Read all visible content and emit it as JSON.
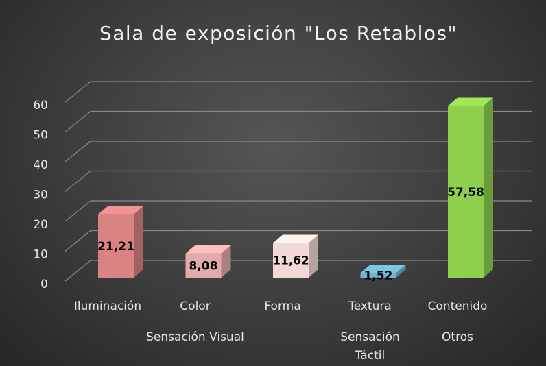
{
  "chart_data": {
    "type": "bar3d",
    "title": "Sala de exposición \"Los Retablos\"",
    "categories": [
      "Iluminación",
      "Color",
      "Forma",
      "Textura",
      "Contenido"
    ],
    "values": [
      21.21,
      8.08,
      11.62,
      1.52,
      57.58
    ],
    "value_labels": [
      "21,21",
      "8,08",
      "11,62",
      "1,52",
      "57,58"
    ],
    "colors": [
      "#d98383",
      "#e2aaaa",
      "#f3d9d5",
      "#6fb3cc",
      "#8fcf4e"
    ],
    "groups": [
      {
        "label": "Sensación Visual",
        "categories": [
          0,
          1,
          2
        ]
      },
      {
        "label": "Sensación Táctil",
        "categories": [
          3
        ]
      },
      {
        "label": "Otros",
        "categories": [
          4
        ]
      }
    ],
    "ylim": [
      0,
      60
    ],
    "yticks": [
      0,
      10,
      20,
      30,
      40,
      50,
      60
    ],
    "grid": true
  }
}
